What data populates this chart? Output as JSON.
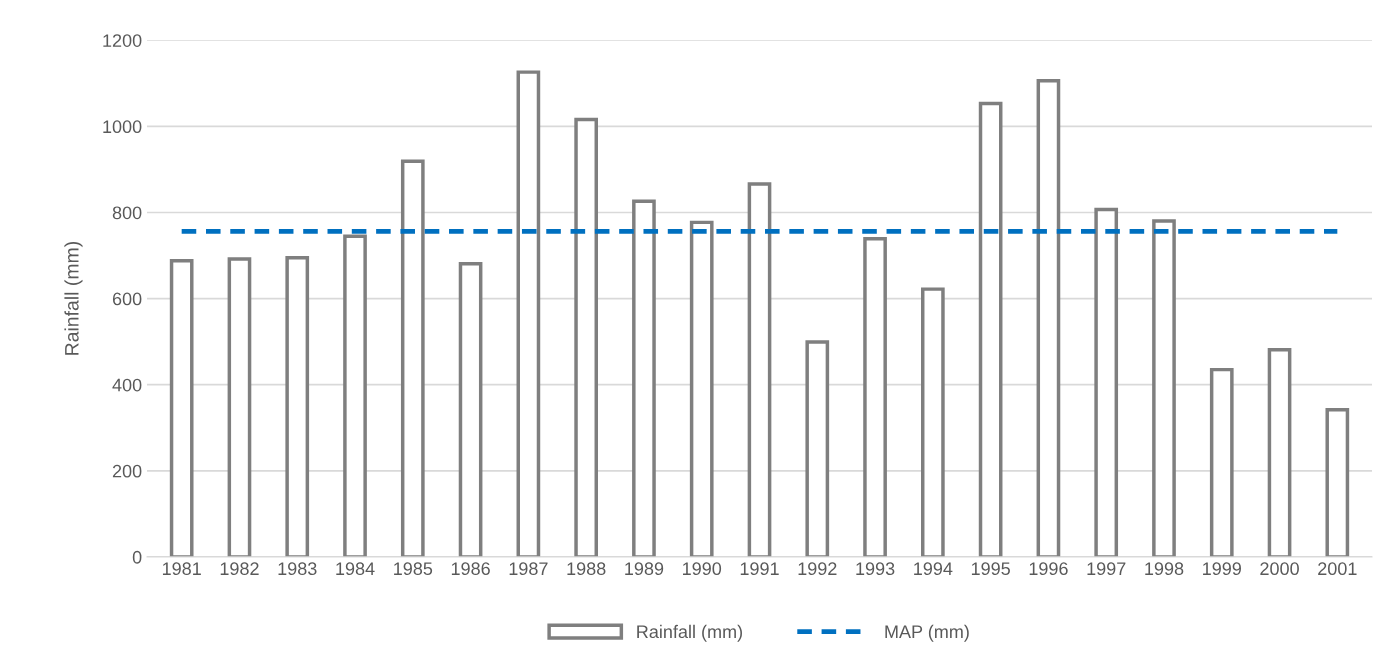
{
  "chart_data": {
    "type": "bar",
    "ylabel": "Rainfall (mm)",
    "categories": [
      "1981",
      "1982",
      "1983",
      "1984",
      "1985",
      "1986",
      "1987",
      "1988",
      "1989",
      "1990",
      "1991",
      "1992",
      "1993",
      "1994",
      "1995",
      "1996",
      "1997",
      "1998",
      "1999",
      "2000",
      "2001"
    ],
    "series": [
      {
        "name": "Rainfall (mm)",
        "color": "#7f7f7f",
        "values": [
          688,
          692,
          695,
          745,
          919,
          681,
          1126,
          1016,
          826,
          777,
          866,
          499,
          739,
          622,
          1053,
          1106,
          807,
          780,
          435,
          481,
          342
        ]
      },
      {
        "name": "MAP (mm)",
        "type": "line",
        "color": "#0070c0",
        "line_style": "dashed",
        "marker": "none",
        "values": [
          756,
          756,
          756,
          756,
          756,
          756,
          756,
          756,
          756,
          756,
          756,
          756,
          756,
          756,
          756,
          756,
          756,
          756,
          756,
          756,
          756
        ]
      }
    ],
    "ylim": [
      0,
      1200
    ],
    "yticks": [
      0,
      200,
      400,
      600,
      800,
      1000,
      1200
    ],
    "grid": "y",
    "legend": "bottom"
  }
}
